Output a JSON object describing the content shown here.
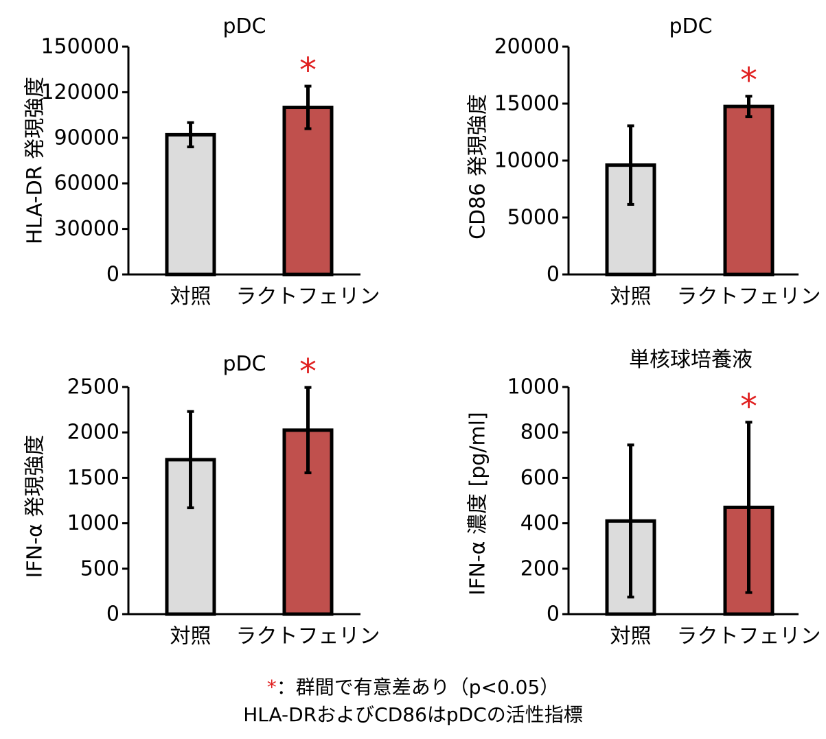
{
  "colors": {
    "control": "#dcdcdc",
    "lactoferrin": "#c0504d",
    "significance": "#e02020",
    "axis": "#000000"
  },
  "chart_data": [
    {
      "type": "bar",
      "title": "pDC",
      "ylabel": "HLA-DR 発現強度",
      "categories": [
        "対照",
        "ラクトフェリン"
      ],
      "values": [
        92000,
        110000
      ],
      "errors": [
        8000,
        14000
      ],
      "significance": [
        "",
        "*"
      ],
      "ylim": [
        0,
        150000
      ],
      "yticks": [
        0,
        30000,
        60000,
        90000,
        120000,
        150000
      ],
      "ytick_labels": [
        "0",
        "30000",
        "60000",
        "90000",
        "120000",
        "150000"
      ]
    },
    {
      "type": "bar",
      "title": "pDC",
      "ylabel": "CD86 発現強度",
      "categories": [
        "対照",
        "ラクトフェリン"
      ],
      "values": [
        9600,
        14750
      ],
      "errors": [
        3450,
        900
      ],
      "significance": [
        "",
        "*"
      ],
      "ylim": [
        0,
        20000
      ],
      "yticks": [
        0,
        5000,
        10000,
        15000,
        20000
      ],
      "ytick_labels": [
        "0",
        "5000",
        "10000",
        "15000",
        "20000"
      ]
    },
    {
      "type": "bar",
      "title": "pDC",
      "ylabel": "IFN-α 発現強度",
      "categories": [
        "対照",
        "ラクトフェリン"
      ],
      "values": [
        1700,
        2025
      ],
      "errors": [
        530,
        470
      ],
      "significance": [
        "",
        "*"
      ],
      "ylim": [
        0,
        2500
      ],
      "yticks": [
        0,
        500,
        1000,
        1500,
        2000,
        2500
      ],
      "ytick_labels": [
        "0",
        "500",
        "1000",
        "1500",
        "2000",
        "2500"
      ]
    },
    {
      "type": "bar",
      "title": "単核球培養液",
      "ylabel": "IFN-α 濃度 [pg/ml]",
      "categories": [
        "対照",
        "ラクトフェリン"
      ],
      "values": [
        410,
        470
      ],
      "errors": [
        335,
        375
      ],
      "significance": [
        "",
        "*"
      ],
      "ylim": [
        0,
        1000
      ],
      "yticks": [
        0,
        200,
        400,
        600,
        800,
        1000
      ],
      "ytick_labels": [
        "0",
        "200",
        "400",
        "600",
        "800",
        "1000"
      ]
    }
  ],
  "footnote": {
    "star": "*",
    "significance_text": "：群間で有意差あり（p<0.05）",
    "indicator_text": "HLA-DRおよびCD86はpDCの活性指標"
  }
}
